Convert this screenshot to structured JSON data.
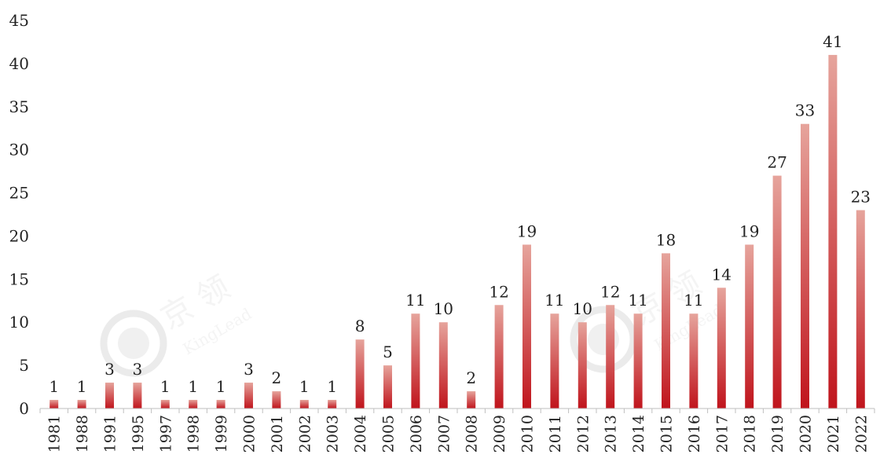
{
  "chart_data": {
    "type": "bar",
    "categories": [
      "1981",
      "1988",
      "1991",
      "1995",
      "1997",
      "1998",
      "1999",
      "2000",
      "2001",
      "2002",
      "2003",
      "2004",
      "2005",
      "2006",
      "2007",
      "2008",
      "2009",
      "2010",
      "2011",
      "2012",
      "2013",
      "2014",
      "2015",
      "2016",
      "2017",
      "2018",
      "2019",
      "2020",
      "2021",
      "2022"
    ],
    "values": [
      1,
      1,
      3,
      3,
      1,
      1,
      1,
      3,
      2,
      1,
      1,
      8,
      5,
      11,
      10,
      2,
      12,
      19,
      11,
      10,
      12,
      11,
      18,
      11,
      14,
      19,
      27,
      33,
      41,
      23
    ],
    "ylim": [
      0,
      45
    ],
    "yticks": [
      0,
      5,
      10,
      15,
      20,
      25,
      30,
      35,
      40,
      45
    ],
    "grid": false,
    "legend": "none",
    "data_labels": true,
    "colors": {
      "bar_top": "#e6a49c",
      "bar_bottom": "#c0141c",
      "axis": "#bfbfbf",
      "text": "#222222"
    }
  },
  "watermark": {
    "cn": "京 领",
    "en": "KingLead"
  }
}
